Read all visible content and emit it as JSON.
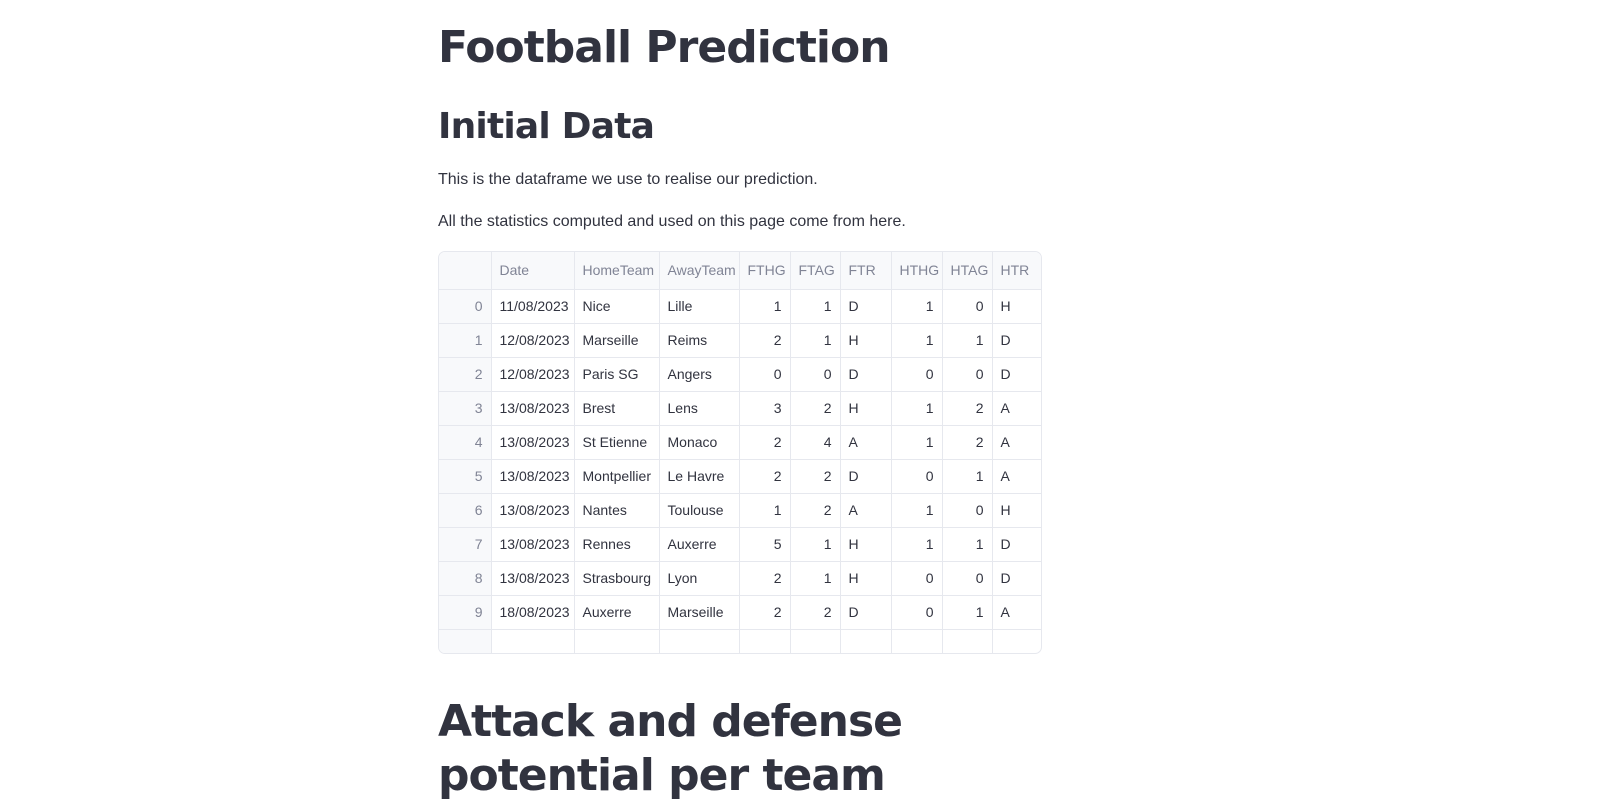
{
  "page": {
    "title": "Football Prediction",
    "section1_title": "Initial Data",
    "intro_line1": "This is the dataframe we use to realise our prediction.",
    "intro_line2": "All the statistics computed and used on this page come from here.",
    "section2_title": "Attack and defense potential per team"
  },
  "table": {
    "columns": [
      "",
      "Date",
      "HomeTeam",
      "AwayTeam",
      "FTHG",
      "FTAG",
      "FTR",
      "HTHG",
      "HTAG",
      "HTR"
    ],
    "rows": [
      [
        "0",
        "11/08/2023",
        "Nice",
        "Lille",
        "1",
        "1",
        "D",
        "1",
        "0",
        "H"
      ],
      [
        "1",
        "12/08/2023",
        "Marseille",
        "Reims",
        "2",
        "1",
        "H",
        "1",
        "1",
        "D"
      ],
      [
        "2",
        "12/08/2023",
        "Paris SG",
        "Angers",
        "0",
        "0",
        "D",
        "0",
        "0",
        "D"
      ],
      [
        "3",
        "13/08/2023",
        "Brest",
        "Lens",
        "3",
        "2",
        "H",
        "1",
        "2",
        "A"
      ],
      [
        "4",
        "13/08/2023",
        "St Etienne",
        "Monaco",
        "2",
        "4",
        "A",
        "1",
        "2",
        "A"
      ],
      [
        "5",
        "13/08/2023",
        "Montpellier",
        "Le Havre",
        "2",
        "2",
        "D",
        "0",
        "1",
        "A"
      ],
      [
        "6",
        "13/08/2023",
        "Nantes",
        "Toulouse",
        "1",
        "2",
        "A",
        "1",
        "0",
        "H"
      ],
      [
        "7",
        "13/08/2023",
        "Rennes",
        "Auxerre",
        "5",
        "1",
        "H",
        "1",
        "1",
        "D"
      ],
      [
        "8",
        "13/08/2023",
        "Strasbourg",
        "Lyon",
        "2",
        "1",
        "H",
        "0",
        "0",
        "D"
      ],
      [
        "9",
        "18/08/2023",
        "Auxerre",
        "Marseille",
        "2",
        "2",
        "D",
        "0",
        "1",
        "A"
      ]
    ]
  }
}
